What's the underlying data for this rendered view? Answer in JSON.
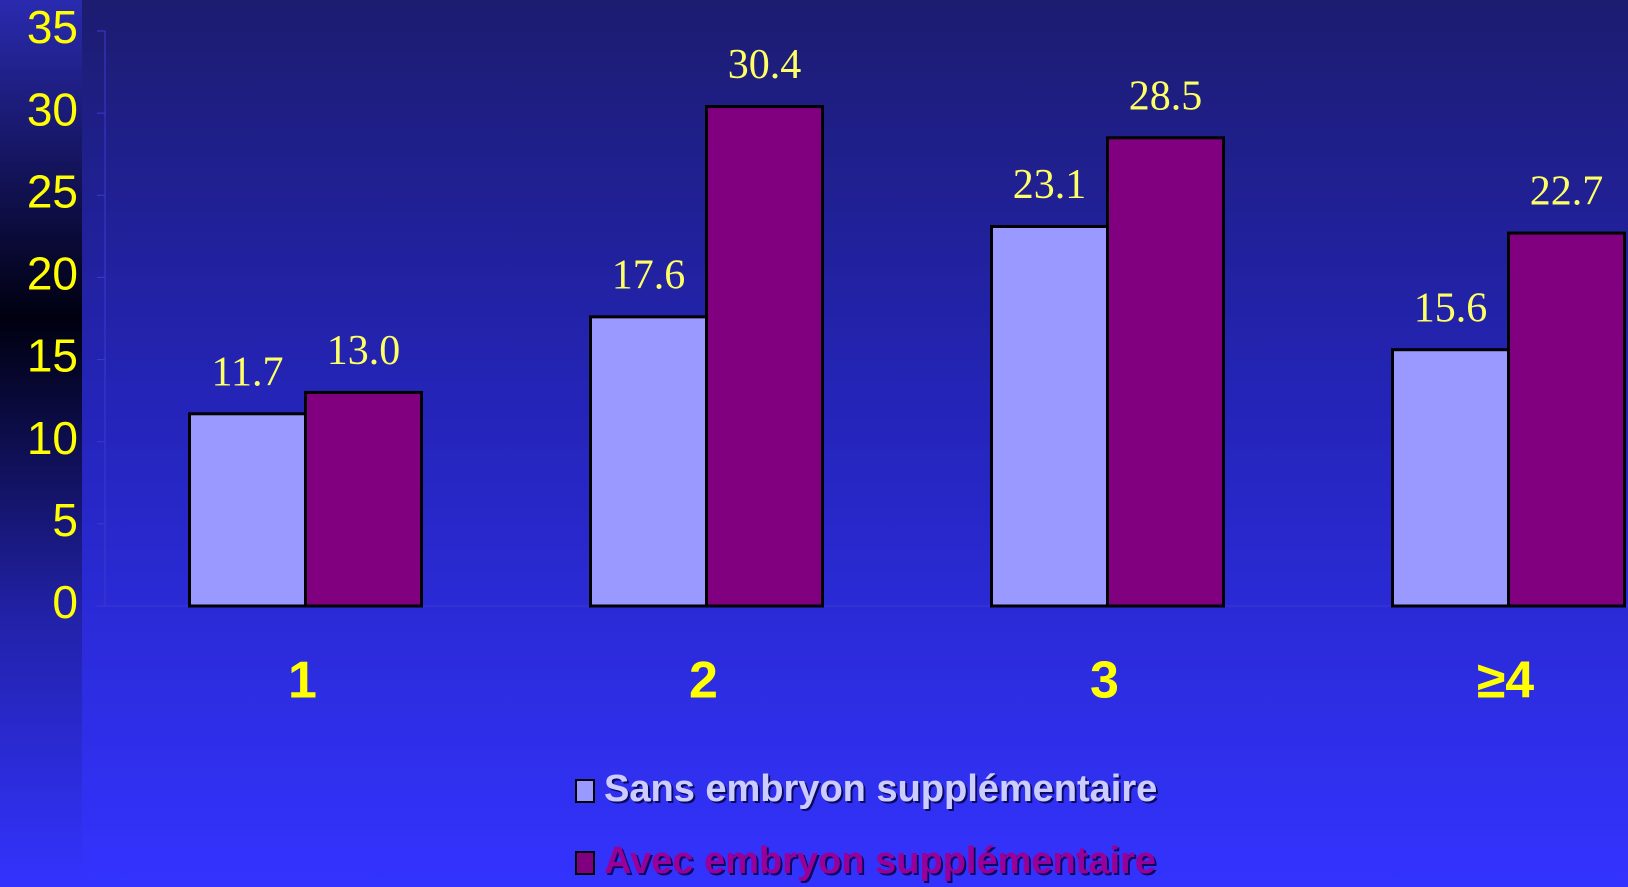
{
  "chart_data": {
    "type": "bar",
    "categories": [
      "1",
      "2",
      "3",
      "≥4"
    ],
    "series": [
      {
        "name": "Sans embryon supplémentaire",
        "color": "#9999ff",
        "values": [
          11.7,
          17.6,
          23.1,
          15.6
        ],
        "value_labels": [
          "11.7",
          "17.6",
          "23.1",
          "15.6"
        ]
      },
      {
        "name": "Avec embryon supplémentaire",
        "color": "#800080",
        "values": [
          13.0,
          30.4,
          28.5,
          22.7
        ],
        "value_labels": [
          "13.0",
          "30.4",
          "28.5",
          "22.7"
        ]
      }
    ],
    "ylim": [
      0,
      35
    ],
    "yticks": [
      0,
      5,
      10,
      15,
      20,
      25,
      30,
      35
    ],
    "grid": false
  }
}
